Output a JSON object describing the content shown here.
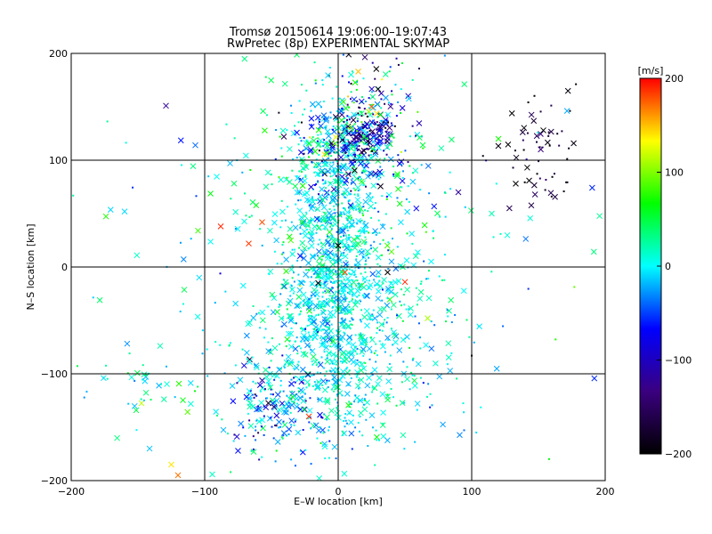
{
  "chart_data": {
    "type": "scatter",
    "title": "Tromsø 20150614 19:06:00–19:07:43",
    "subtitle": "RwPretec (8p) EXPERIMENTAL SKYMAP",
    "xlabel": "E–W location [km]",
    "ylabel": "N–S location [km]",
    "xlim": [
      -200,
      200
    ],
    "ylim": [
      -200,
      200
    ],
    "xticks": [
      -200,
      -100,
      0,
      100,
      200
    ],
    "yticks": [
      -200,
      -100,
      0,
      100,
      200
    ],
    "xtick_labels": [
      "−200",
      "−100",
      "0",
      "100",
      "200"
    ],
    "ytick_labels": [
      "−200",
      "−100",
      "0",
      "100",
      "200"
    ],
    "grid": true,
    "markers": [
      "dot",
      "x"
    ],
    "colorbar": {
      "label": "[m/s]",
      "range": [
        -200,
        200
      ],
      "ticks": [
        200,
        100,
        0,
        -100,
        -200
      ],
      "tick_labels": [
        "200",
        "100",
        "0",
        "−100",
        "−200"
      ],
      "colormap": [
        "#000000",
        "#3a007f",
        "#0000ff",
        "#00ffff",
        "#00ff00",
        "#ffff00",
        "#ff0000"
      ]
    },
    "clusters": [
      {
        "x": 0,
        "y": 10,
        "sx": 16,
        "sy": 80,
        "n": 900,
        "v": 0,
        "vs": 20
      },
      {
        "x": 10,
        "y": 110,
        "sx": 22,
        "sy": 22,
        "n": 260,
        "v": -30,
        "vs": 70
      },
      {
        "x": 20,
        "y": 125,
        "sx": 12,
        "sy": 10,
        "n": 110,
        "v": -110,
        "vs": 40
      },
      {
        "x": 25,
        "y": 150,
        "sx": 22,
        "sy": 25,
        "n": 90,
        "v": -60,
        "vs": 90
      },
      {
        "x": -45,
        "y": -130,
        "sx": 18,
        "sy": 22,
        "n": 140,
        "v": -40,
        "vs": 50
      },
      {
        "x": -25,
        "y": -80,
        "sx": 32,
        "sy": 45,
        "n": 280,
        "v": 0,
        "vs": 25
      },
      {
        "x": 30,
        "y": -60,
        "sx": 30,
        "sy": 60,
        "n": 260,
        "v": 10,
        "vs": 25
      },
      {
        "x": 150,
        "y": 110,
        "sx": 15,
        "sy": 25,
        "n": 60,
        "v": -170,
        "vs": 30
      },
      {
        "x": -10,
        "y": 60,
        "sx": 40,
        "sy": 50,
        "n": 220,
        "v": 20,
        "vs": 30
      },
      {
        "x": -150,
        "y": -115,
        "sx": 20,
        "sy": 15,
        "n": 30,
        "v": 20,
        "vs": 30
      },
      {
        "x": 0,
        "y": 0,
        "sx": 110,
        "sy": 110,
        "n": 180,
        "v": 0,
        "vs": 45
      }
    ],
    "points": [
      {
        "x": -129,
        "y": 151,
        "v": -120,
        "m": "x"
      },
      {
        "x": -120,
        "y": -195,
        "v": 170,
        "m": "x"
      },
      {
        "x": -125,
        "y": -185,
        "v": 140,
        "m": "x"
      },
      {
        "x": -107,
        "y": 114,
        "v": -40,
        "m": "x"
      },
      {
        "x": -88,
        "y": 38,
        "v": 190,
        "m": "x"
      },
      {
        "x": -67,
        "y": 22,
        "v": 185,
        "m": "x"
      },
      {
        "x": -57,
        "y": 42,
        "v": 180,
        "m": "x"
      },
      {
        "x": -22,
        "y": -140,
        "v": 185,
        "m": "x"
      },
      {
        "x": 50,
        "y": -14,
        "v": 190,
        "m": "x"
      },
      {
        "x": 0,
        "y": 20,
        "v": -200,
        "m": "x"
      },
      {
        "x": -15,
        "y": -15,
        "v": -190,
        "m": "x"
      },
      {
        "x": 5,
        "y": -5,
        "v": 180,
        "m": "x"
      },
      {
        "x": 37,
        "y": -5,
        "v": -200,
        "m": "x"
      },
      {
        "x": -160,
        "y": 52,
        "v": -10,
        "m": "x"
      },
      {
        "x": 67,
        "y": -48,
        "v": 110,
        "m": "x"
      },
      {
        "x": 25,
        "y": 150,
        "v": 175,
        "m": "x"
      },
      {
        "x": 15,
        "y": 183,
        "v": 150,
        "m": "x"
      },
      {
        "x": 120,
        "y": 120,
        "v": 70,
        "m": "x"
      },
      {
        "x": 133,
        "y": 78,
        "v": -200,
        "m": "x"
      },
      {
        "x": 90,
        "y": 70,
        "v": -120,
        "m": "x"
      },
      {
        "x": 115,
        "y": 50,
        "v": 20,
        "m": "x"
      },
      {
        "x": 100,
        "y": -83,
        "v": -190,
        "m": "dot"
      }
    ]
  }
}
